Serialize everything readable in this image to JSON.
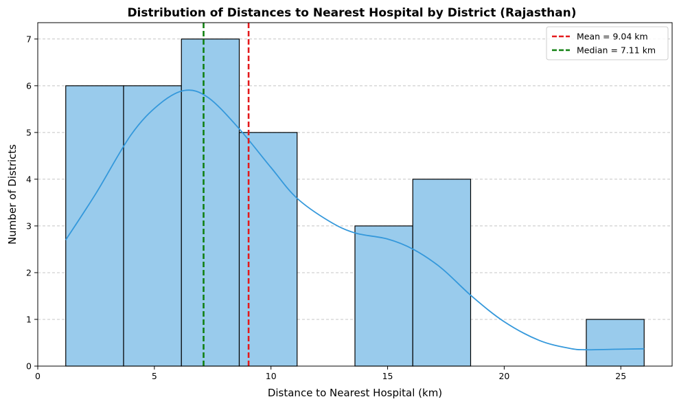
{
  "chart_data": {
    "type": "bar",
    "subtype": "histogram-with-kde",
    "title": "Distribution of Distances to Nearest Hospital by District (Rajasthan)",
    "xlabel": "Distance to Nearest Hospital (km)",
    "ylabel": "Number of Districts",
    "xlim": [
      0,
      27.2
    ],
    "ylim": [
      0,
      7.35
    ],
    "xticks": [
      0,
      5,
      10,
      15,
      20,
      25
    ],
    "yticks": [
      0,
      1,
      2,
      3,
      4,
      5,
      6,
      7
    ],
    "grid": "y-dashed",
    "legend_position": "top-right",
    "bins": [
      {
        "x0": 1.2,
        "x1": 3.68,
        "count": 6
      },
      {
        "x0": 3.68,
        "x1": 6.16,
        "count": 6
      },
      {
        "x0": 6.16,
        "x1": 8.64,
        "count": 7
      },
      {
        "x0": 8.64,
        "x1": 11.12,
        "count": 5
      },
      {
        "x0": 11.12,
        "x1": 13.6,
        "count": 0
      },
      {
        "x0": 13.6,
        "x1": 16.08,
        "count": 3
      },
      {
        "x0": 16.08,
        "x1": 18.56,
        "count": 4
      },
      {
        "x0": 18.56,
        "x1": 21.04,
        "count": 0
      },
      {
        "x0": 21.04,
        "x1": 23.52,
        "count": 0
      },
      {
        "x0": 23.52,
        "x1": 26.0,
        "count": 1
      }
    ],
    "kde": {
      "x": [
        1.2,
        2.5,
        4.0,
        5.2,
        6.3,
        7.3,
        8.6,
        10.0,
        11.1,
        12.5,
        13.6,
        15.0,
        16.1,
        17.3,
        18.6,
        20.0,
        21.5,
        22.8,
        23.5,
        24.7,
        26.0
      ],
      "y": [
        2.7,
        3.7,
        4.95,
        5.6,
        5.9,
        5.75,
        5.1,
        4.25,
        3.6,
        3.1,
        2.85,
        2.72,
        2.5,
        2.1,
        1.5,
        0.95,
        0.55,
        0.38,
        0.35,
        0.36,
        0.37
      ]
    },
    "mean": 9.04,
    "median": 7.11,
    "legend": [
      {
        "label": "Mean = 9.04 km",
        "color": "#e31a1c",
        "style": "dashed"
      },
      {
        "label": "Median = 7.11 km",
        "color": "#108010",
        "style": "dashed"
      }
    ],
    "colors": {
      "bar_fill": "#99CBEC",
      "bar_edge": "#000000",
      "kde_line": "#3498DB",
      "mean_line": "#e31a1c",
      "median_line": "#108010",
      "grid": "#c4c4c4"
    }
  }
}
